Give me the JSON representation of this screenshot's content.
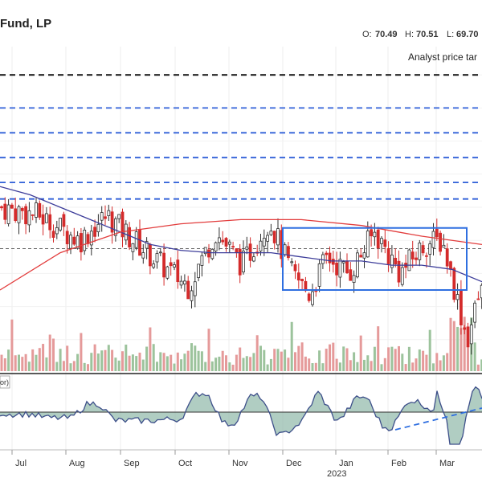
{
  "header": {
    "title": "Fund, LP",
    "ohlc": [
      {
        "label": "O:",
        "value": "70.49"
      },
      {
        "label": "H:",
        "value": "70.51"
      },
      {
        "label": "L:",
        "value": "69.70"
      }
    ]
  },
  "annotations": {
    "analyst_label": "Analyst price tar",
    "oscillator_label": "or)"
  },
  "colors": {
    "up": "#2f2f2f",
    "down": "#d42b2b",
    "ma_fast": "#3d3d9a",
    "ma_slow": "#e23c3c",
    "box": "#2f6fe0",
    "dashed_blue": "#2f5fd8",
    "volume_up": "#9cc39c",
    "volume_down": "#e59a9a",
    "oscillator_fill": "#8fb8a8",
    "oscillator_line": "#3d4f8a"
  },
  "chart_data": {
    "type": "line",
    "x_tick_labels": [
      "Jul",
      "Aug",
      "Sep",
      "Oct",
      "Nov",
      "Dec",
      "Jan",
      "Feb",
      "Mar"
    ],
    "year_label": "2023",
    "levels": {
      "analyst_target": 96.0,
      "resistance_lines": [
        92.0,
        89.0,
        86.0,
        83.0,
        81.0
      ],
      "reference_dashed": 75.0
    },
    "consolidation_box": {
      "start_month": "Dec",
      "end_month": "Mar",
      "high": 77.5,
      "low": 70.0
    },
    "price_series": [
      {
        "month": "Jun",
        "close": 80.0
      },
      {
        "month": "Jul",
        "close": 79.0
      },
      {
        "month": "Aug",
        "close": 76.0
      },
      {
        "month": "Aug",
        "close": 79.0
      },
      {
        "month": "Sep",
        "close": 76.0
      },
      {
        "month": "Sep",
        "close": 73.0
      },
      {
        "month": "Oct",
        "close": 70.5
      },
      {
        "month": "Oct",
        "close": 77.0
      },
      {
        "month": "Nov",
        "close": 73.0
      },
      {
        "month": "Nov",
        "close": 78.5
      },
      {
        "month": "Dec",
        "close": 72.0
      },
      {
        "month": "Dec",
        "close": 69.5
      },
      {
        "month": "Dec",
        "close": 74.0
      },
      {
        "month": "Jan",
        "close": 72.0
      },
      {
        "month": "Jan",
        "close": 77.0
      },
      {
        "month": "Feb",
        "close": 72.0
      },
      {
        "month": "Feb",
        "close": 75.5
      },
      {
        "month": "Mar",
        "close": 76.0
      },
      {
        "month": "Mar",
        "close": 70.0
      },
      {
        "month": "Mar",
        "close": 64.0
      },
      {
        "month": "Mar",
        "close": 69.7
      }
    ],
    "moving_averages": [
      {
        "values": [
          82.5,
          81.5,
          80.0,
          78.5,
          77.0,
          75.5,
          74.8,
          74.5,
          74.5,
          74.5,
          74.0,
          73.5,
          73.5,
          73.0,
          73.0,
          72.5,
          71.0
        ]
      },
      {
        "values": [
          70.0,
          74.5,
          77.0,
          78.0,
          78.5,
          78.5,
          77.8,
          76.5,
          75.5
        ]
      }
    ]
  }
}
